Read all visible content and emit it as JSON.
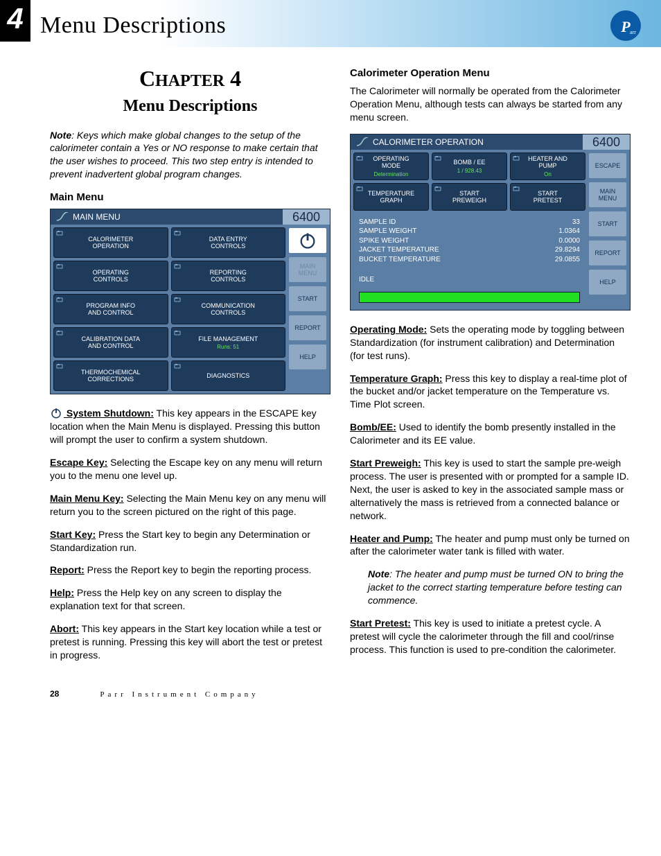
{
  "header": {
    "chapter_number": "4",
    "chapter_title": "Menu Descriptions",
    "logo_letters": "Parr"
  },
  "left": {
    "chapter_line": "CHAPTER 4",
    "chapter_sub": "Menu Descriptions",
    "note_label": "Note",
    "note_text": ": Keys which make global changes to the setup of the calorimeter contain a Yes or NO response to make certain that the user wishes to proceed. This two step entry is intended to prevent inadvertent global program changes.",
    "main_menu_heading": "Main Menu",
    "main_menu_screen": {
      "title": "MAIN MENU",
      "model": "6400",
      "buttons": [
        {
          "l1": "CALORIMETER",
          "l2": "OPERATION"
        },
        {
          "l1": "DATA ENTRY",
          "l2": "CONTROLS"
        },
        {
          "l1": "OPERATING",
          "l2": "CONTROLS"
        },
        {
          "l1": "REPORTING",
          "l2": "CONTROLS"
        },
        {
          "l1": "PROGRAM INFO",
          "l2": "AND CONTROL"
        },
        {
          "l1": "COMMUNICATION",
          "l2": "CONTROLS"
        },
        {
          "l1": "CALIBRATION DATA",
          "l2": "AND CONTROL"
        },
        {
          "l1": "FILE MANAGEMENT",
          "sub": "Runs: 51"
        },
        {
          "l1": "THERMOCHEMICAL",
          "l2": "CORRECTIONS"
        },
        {
          "l1": "DIAGNOSTICS"
        }
      ],
      "side": [
        {
          "type": "power"
        },
        {
          "l1": "MAIN",
          "l2": "MENU",
          "dim": true
        },
        {
          "l1": "START"
        },
        {
          "l1": "REPORT"
        },
        {
          "l1": "HELP"
        }
      ]
    },
    "defs": [
      {
        "term": " System Shutdown:",
        "icon": true,
        "text": " This key appears in the ESCAPE key location when the Main Menu is displayed. Pressing this button will prompt the user to confirm a system shutdown."
      },
      {
        "term": "Escape Key:",
        "text": " Selecting the Escape key on any menu will return you to the menu one level up."
      },
      {
        "term": "Main Menu Key:",
        "text": " Selecting the Main Menu key on any menu will return you to the screen pictured on the right of this page."
      },
      {
        "term": "Start Key:",
        "text": " Press the Start key to begin any Determination or Standardization run."
      },
      {
        "term": "Report:",
        "text": " Press the Report key to begin the reporting process."
      },
      {
        "term": "Help:",
        "text": " Press the Help key on any screen to display the explanation text for that screen."
      },
      {
        "term": "Abort:",
        "text": " This key appears in the Start key location while a test or pretest is running. Pressing this key will abort the test or pretest in progress."
      }
    ]
  },
  "right": {
    "heading": "Calorimeter Operation Menu",
    "intro": "The Calorimeter will normally be operated from the Calorimeter Operation Menu, although tests can always be started from any menu screen.",
    "op_screen": {
      "title": "CALORIMETER OPERATION",
      "model": "6400",
      "top": [
        {
          "l1": "OPERATING",
          "l2": "MODE",
          "sub": "Determination"
        },
        {
          "l1": "BOMB / EE",
          "sub": "1 / 928.43"
        },
        {
          "l1": "HEATER AND",
          "l2": "PUMP",
          "sub": "On"
        },
        {
          "l1": "TEMPERATURE",
          "l2": "GRAPH"
        },
        {
          "l1": "START",
          "l2": "PREWEIGH"
        },
        {
          "l1": "START",
          "l2": "PRETEST"
        }
      ],
      "rows": [
        {
          "k": "SAMPLE ID",
          "v": "33"
        },
        {
          "k": "SAMPLE WEIGHT",
          "v": "1.0364"
        },
        {
          "k": "SPIKE WEIGHT",
          "v": "0.0000"
        },
        {
          "k": "JACKET TEMPERATURE",
          "v": "29.8294"
        },
        {
          "k": "BUCKET TEMPERATURE",
          "v": "29.0855"
        }
      ],
      "idle": "IDLE",
      "side": [
        {
          "l1": "ESCAPE"
        },
        {
          "l1": "MAIN",
          "l2": "MENU"
        },
        {
          "l1": "START"
        },
        {
          "l1": "REPORT"
        },
        {
          "l1": "HELP"
        }
      ]
    },
    "defs": [
      {
        "term": "Operating Mode:",
        "text": " Sets the operating mode by toggling between Standardization (for instrument calibration) and Determination (for test runs)."
      },
      {
        "term": "Temperature Graph:",
        "text": " Press this key to display a real-time plot of the bucket and/or jacket temperature on the Temperature vs. Time Plot screen."
      },
      {
        "term": "Bomb/EE:",
        "text": " Used to identify the bomb presently installed in the Calorimeter and its EE value."
      },
      {
        "term": "Start Preweigh:",
        "text": " This key is used to start the sample pre-weigh process. The user is presented with or prompted for a sample ID. Next, the user is asked to key in the associated sample mass or alternatively the mass is retrieved from a connected balance or network."
      },
      {
        "term": "Heater and Pump:",
        "text": " The heater and pump must only be turned on after the calorimeter water tank is filled with water."
      }
    ],
    "note_label": "Note",
    "note_text": ": The heater and pump must be turned ON to bring the jacket to the correct starting temperature before testing can commence.",
    "defs2": [
      {
        "term": "Start Pretest:",
        "text": " This key is used to initiate a pretest cycle. A pretest will cycle the calorimeter through the fill and cool/rinse process. This function is used to pre-condition the calorimeter."
      }
    ]
  },
  "footer": {
    "page": "28",
    "company": "Parr Instrument Company"
  },
  "colors": {
    "header_grad_start": "#ffffff",
    "header_grad_end": "#6cb6e0",
    "panel_bg": "#5a7ea4",
    "panel_title": "#2c4a6e",
    "btn_bg": "#1f3b5c",
    "side_btn_bg": "#8fa9c4",
    "green": "#21e021",
    "logo": "#0b5aa6"
  }
}
